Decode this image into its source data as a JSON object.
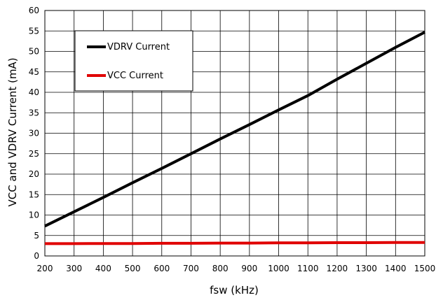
{
  "chart_data": {
    "type": "line",
    "title": "",
    "xlabel": "fsw (kHz)",
    "ylabel": "VCC and VDRV Current (mA)",
    "xlim": [
      200,
      1500
    ],
    "ylim": [
      0,
      60
    ],
    "xticks": [
      200,
      300,
      400,
      500,
      600,
      700,
      800,
      900,
      1000,
      1100,
      1200,
      1300,
      1400,
      1500
    ],
    "yticks": [
      0,
      5,
      10,
      15,
      20,
      25,
      30,
      35,
      40,
      45,
      50,
      55,
      60
    ],
    "grid": true,
    "legend_position": "top-left",
    "series": [
      {
        "name": "VDRV Current",
        "color": "#000000",
        "x": [
          200,
          300,
          400,
          500,
          600,
          700,
          800,
          900,
          1000,
          1100,
          1200,
          1300,
          1400,
          1500
        ],
        "y": [
          7.3,
          10.8,
          14.3,
          17.9,
          21.4,
          25.0,
          28.6,
          32.1,
          35.7,
          39.2,
          43.2,
          47.1,
          51.0,
          54.7
        ]
      },
      {
        "name": "VCC Current",
        "color": "#e00000",
        "x": [
          200,
          300,
          400,
          500,
          600,
          700,
          800,
          900,
          1000,
          1100,
          1200,
          1300,
          1400,
          1500
        ],
        "y": [
          3.0,
          3.0,
          3.05,
          3.05,
          3.1,
          3.1,
          3.15,
          3.15,
          3.2,
          3.2,
          3.25,
          3.25,
          3.3,
          3.3
        ]
      }
    ]
  }
}
